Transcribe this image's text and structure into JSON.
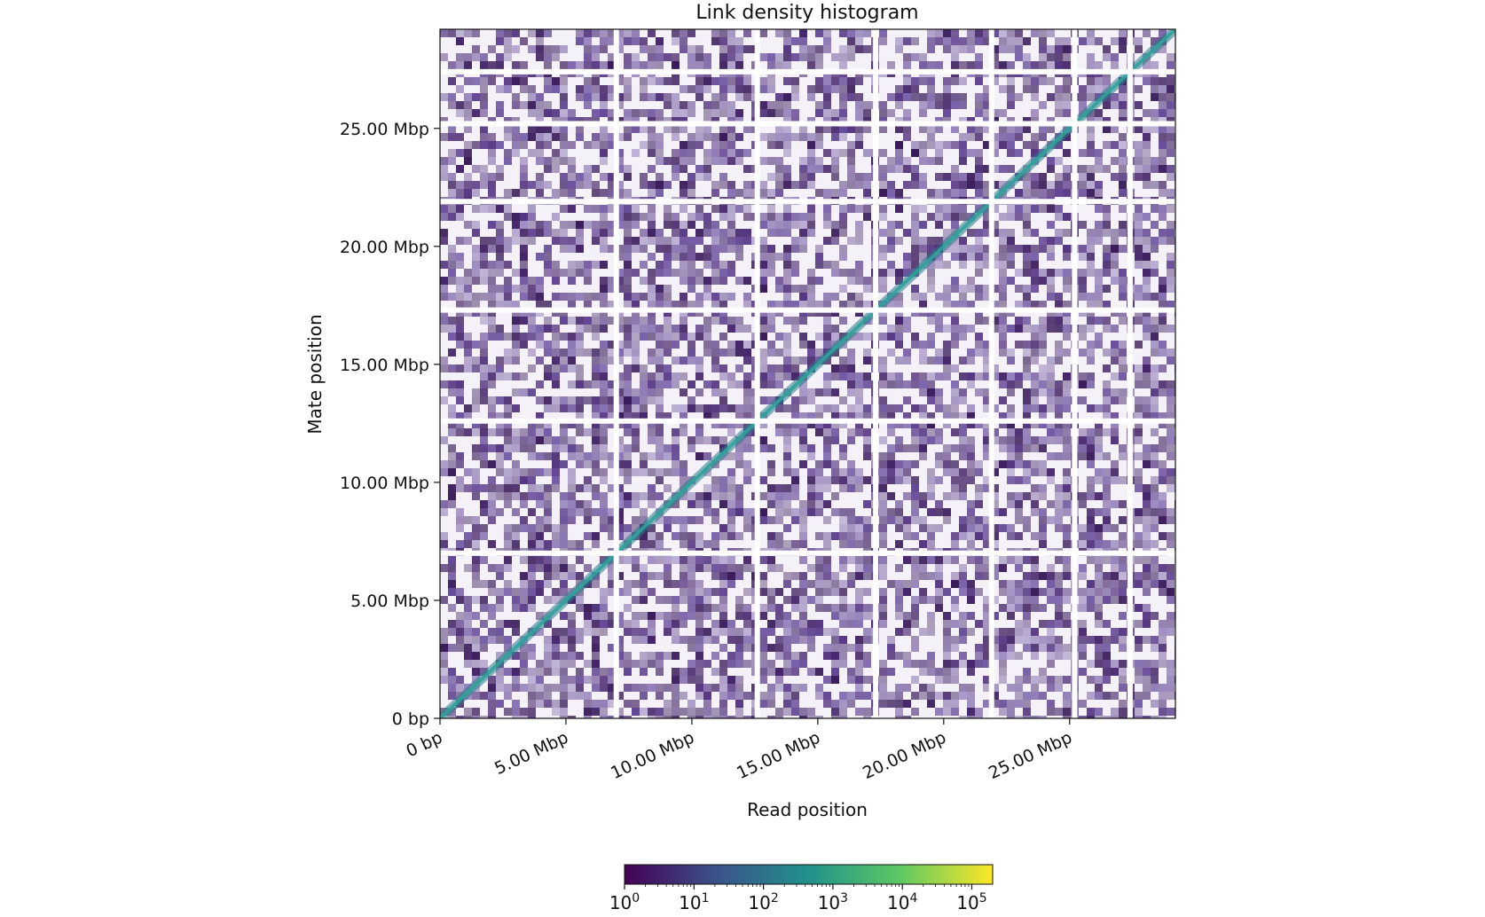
{
  "chart_data": {
    "type": "heatmap",
    "title": "Link density histogram",
    "xlabel": "Read position",
    "ylabel": "Mate position",
    "xlim_mbp": [
      0,
      29.2
    ],
    "ylim_mbp": [
      0,
      29.2
    ],
    "x_ticks": [
      {
        "value": 0,
        "label": "0 bp"
      },
      {
        "value": 5,
        "label": "5.00 Mbp"
      },
      {
        "value": 10,
        "label": "10.00 Mbp"
      },
      {
        "value": 15,
        "label": "15.00 Mbp"
      },
      {
        "value": 20,
        "label": "20.00 Mbp"
      },
      {
        "value": 25,
        "label": "25.00 Mbp"
      }
    ],
    "y_ticks": [
      {
        "value": 0,
        "label": "0 bp"
      },
      {
        "value": 5,
        "label": "5.00 Mbp"
      },
      {
        "value": 10,
        "label": "10.00 Mbp"
      },
      {
        "value": 15,
        "label": "15.00 Mbp"
      },
      {
        "value": 20,
        "label": "20.00 Mbp"
      },
      {
        "value": 25,
        "label": "25.00 Mbp"
      }
    ],
    "scaffold_boundaries_mbp": [
      7.0,
      12.6,
      17.3,
      21.9,
      25.2,
      27.4
    ],
    "colorbar": {
      "scale": "log",
      "colormap": "viridis",
      "range_exponents": [
        0,
        5.3
      ],
      "tick_exponents": [
        0,
        1,
        2,
        3,
        4,
        5
      ],
      "tick_base": "10",
      "colors": [
        "#440154",
        "#3b528b",
        "#21918c",
        "#5ec962",
        "#fde725"
      ]
    },
    "grid": false
  }
}
